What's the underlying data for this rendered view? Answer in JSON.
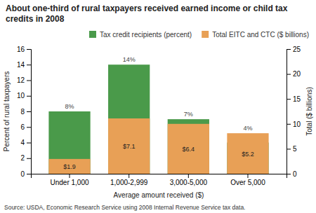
{
  "chart_data": {
    "type": "bar",
    "title": "About one-third of rural taxpayers received earned income or child tax\ncredits in 2008",
    "categories": [
      "Under 1,000",
      "1,000-2,999",
      "3,000-5,000",
      "Over 5,000"
    ],
    "xlabel": "Average amount received ($)",
    "ylabel": "Percent of rural taxpayers",
    "y2label": "Total ($ billions)",
    "series": [
      {
        "name": "Tax credit recipients (percent)",
        "color": "#4a9a4a",
        "values": [
          8,
          14,
          7,
          4
        ],
        "value_labels": [
          "8%",
          "14%",
          "7%",
          "4%"
        ]
      },
      {
        "name": "Total EITC and CTC ($ billions)",
        "color": "#e8a056",
        "values": [
          1.9,
          7.1,
          6.4,
          5.2
        ],
        "value_labels": [
          "$1.9",
          "$7.1",
          "$6.4",
          "$5.2"
        ]
      }
    ],
    "ylim": [
      0,
      16
    ],
    "yticks": [
      0,
      2,
      4,
      6,
      8,
      10,
      12,
      14,
      16
    ],
    "y2lim": [
      0,
      25
    ],
    "y2ticks": [
      0,
      5,
      10,
      15,
      20,
      25
    ],
    "data_labels": true,
    "legend": "upper right",
    "grid": false,
    "annotations": [
      "Source: USDA, Economic Research Service using 2008 Internal Revenue Service tax data."
    ]
  }
}
